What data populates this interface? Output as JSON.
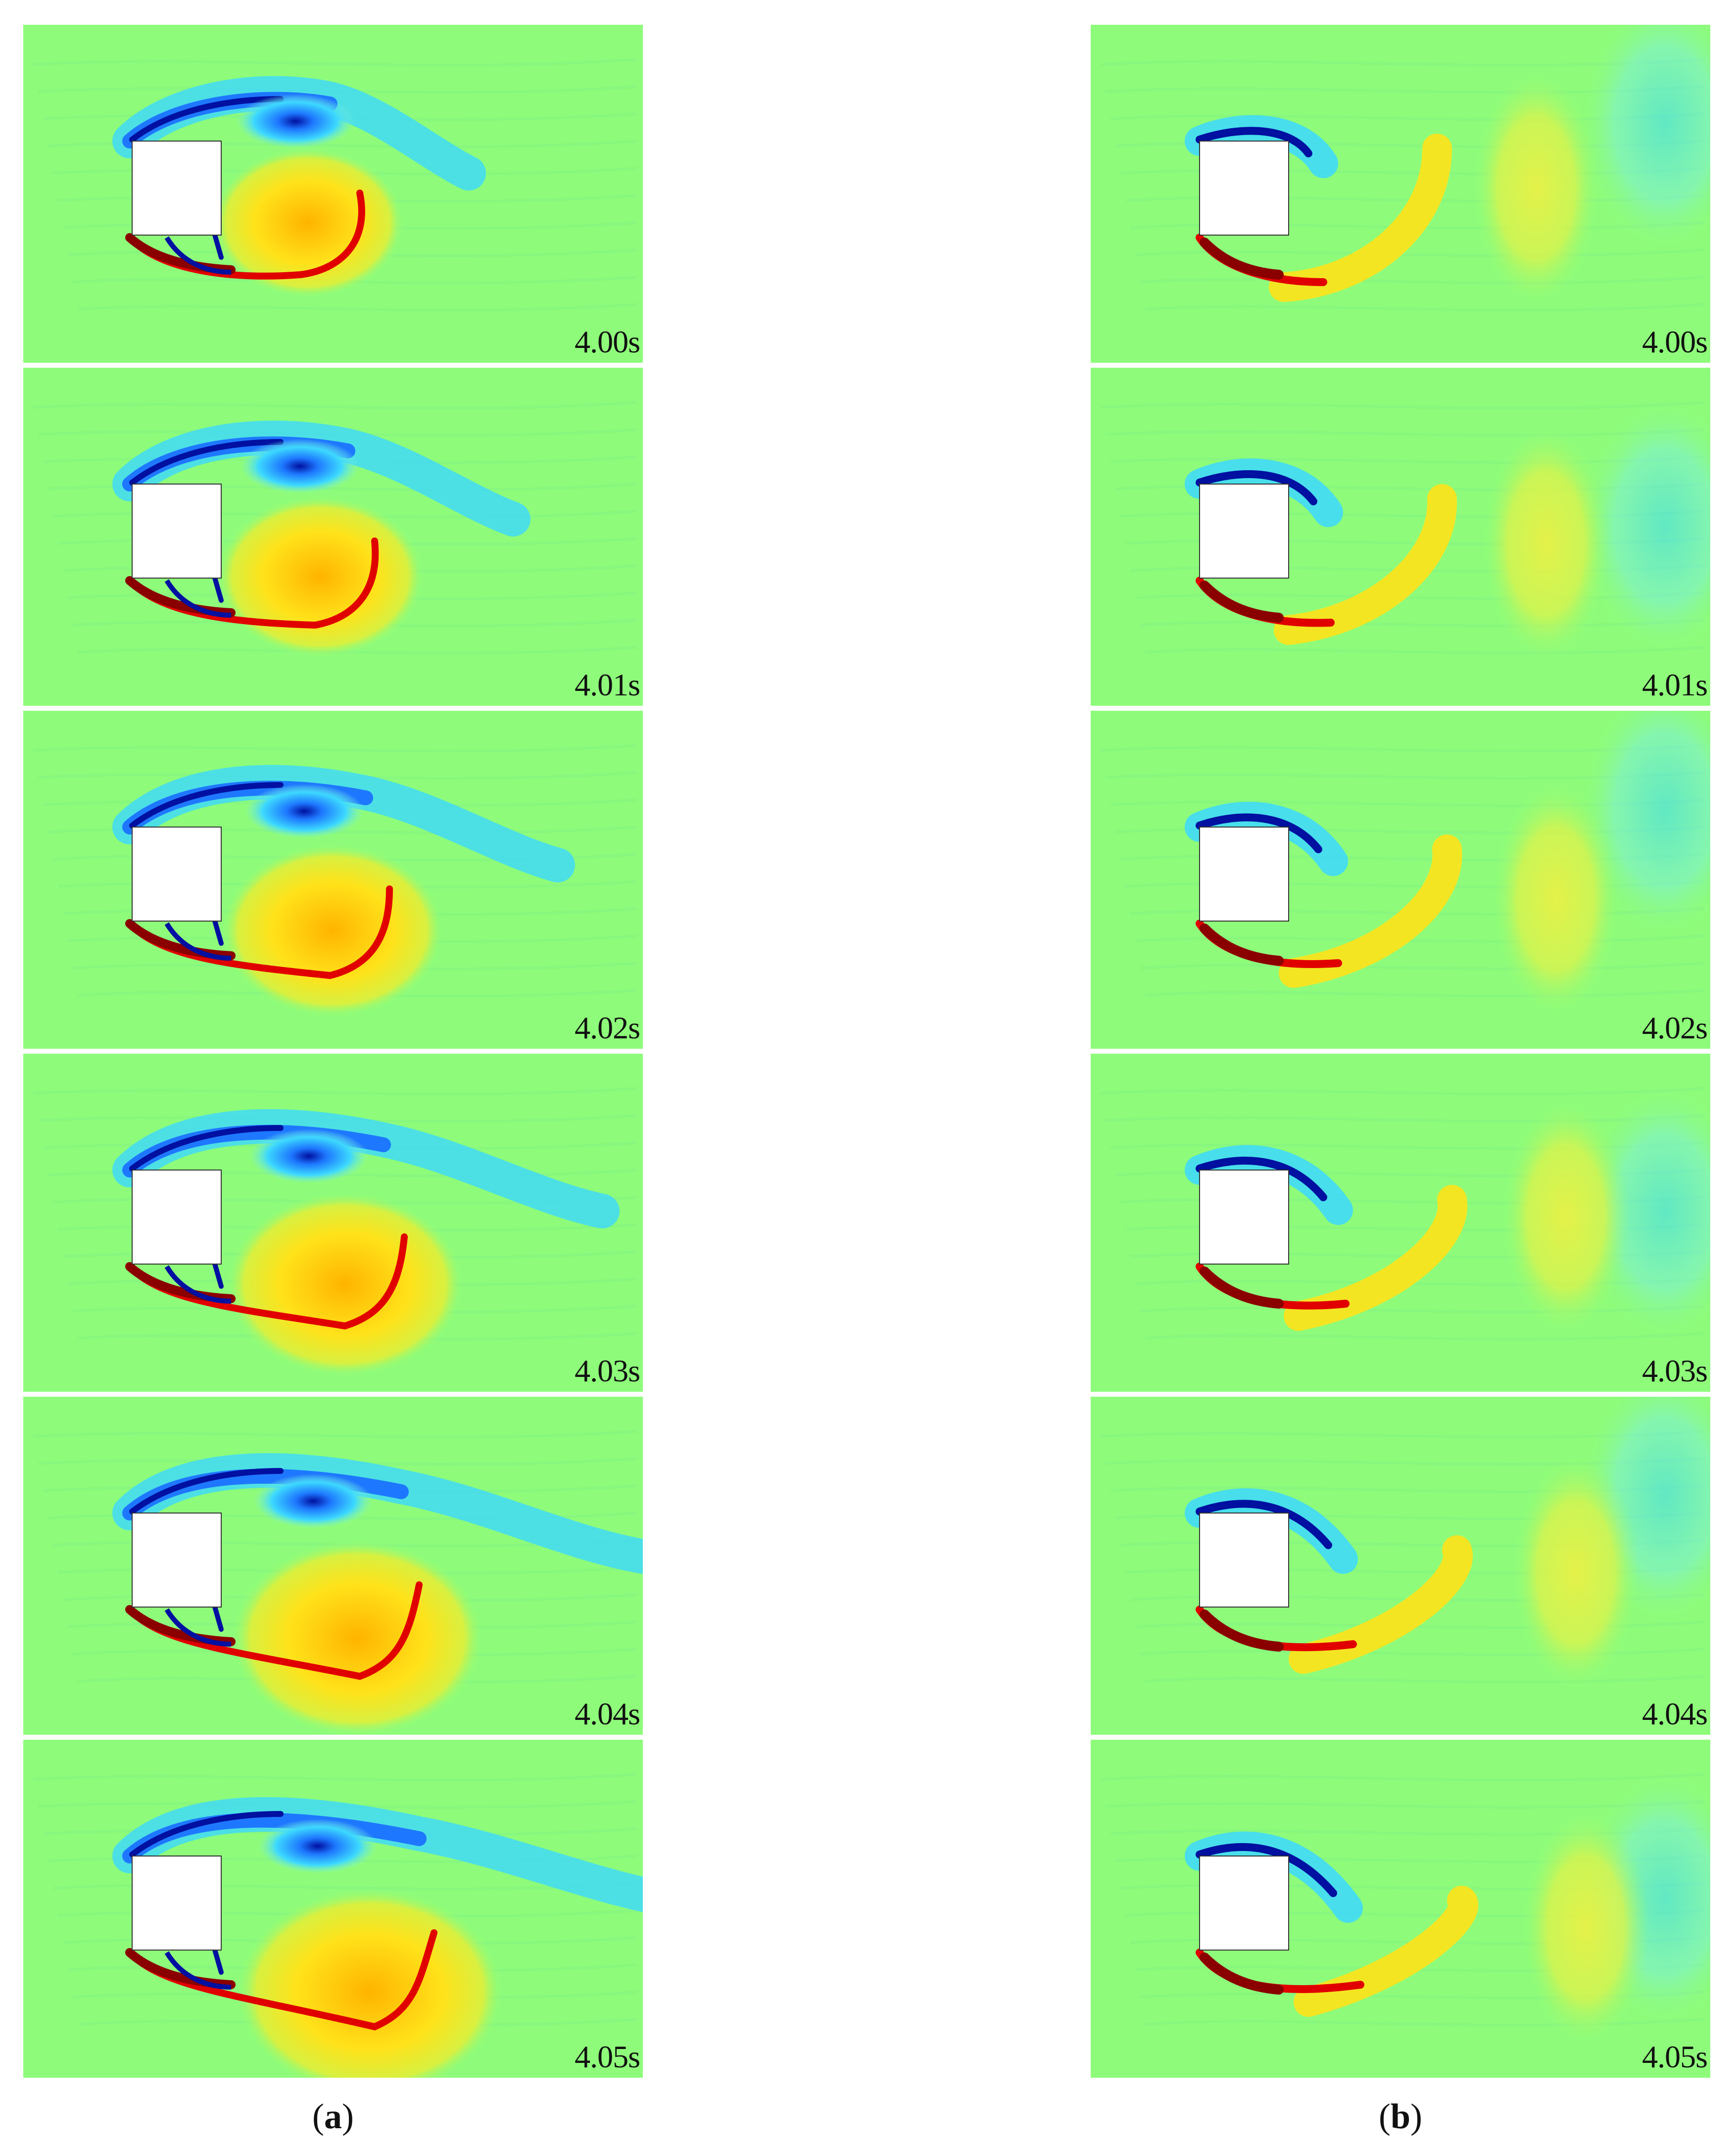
{
  "figure": {
    "colors": {
      "background": "#8efc7a",
      "body": "#ffffff",
      "deep_blue": "#0010a0",
      "blue": "#1e78ff",
      "cyan": "#3cd8ff",
      "light_cyan": "#7ef0d8",
      "yellow": "#ffe21a",
      "orange": "#ffb400",
      "red": "#e00000",
      "dark_red": "#8a0000"
    },
    "columns": [
      {
        "id": "a",
        "caption_open": "(",
        "caption_letter": "a",
        "caption_close": ")",
        "panels": [
          {
            "time": "4.00s"
          },
          {
            "time": "4.01s"
          },
          {
            "time": "4.02s"
          },
          {
            "time": "4.03s"
          },
          {
            "time": "4.04s"
          },
          {
            "time": "4.05s"
          }
        ]
      },
      {
        "id": "b",
        "caption_open": "(",
        "caption_letter": "b",
        "caption_close": ")",
        "panels": [
          {
            "time": "4.00s"
          },
          {
            "time": "4.01s"
          },
          {
            "time": "4.02s"
          },
          {
            "time": "4.03s"
          },
          {
            "time": "4.04s"
          },
          {
            "time": "4.05s"
          }
        ]
      }
    ]
  }
}
